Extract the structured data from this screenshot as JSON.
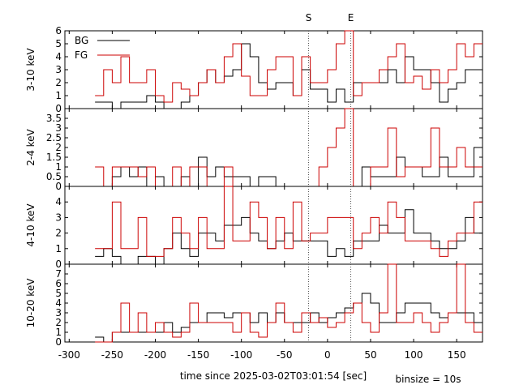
{
  "chart_data": {
    "type": "step-line",
    "xlabel": "time since 2025-03-02T03:01:54 [sec]",
    "note": "binsize = 10s",
    "xlim": [
      -305,
      180
    ],
    "xticks": [
      -300,
      -250,
      -200,
      -150,
      -100,
      -50,
      0,
      50,
      100,
      150
    ],
    "markers": [
      {
        "label": "S",
        "x": -22
      },
      {
        "label": "E",
        "x": 27
      }
    ],
    "legend": {
      "placement": "top-left",
      "entries": [
        {
          "name": "BG",
          "color": "#000000"
        },
        {
          "name": "FG",
          "color": "#cc0000"
        }
      ]
    },
    "panels": [
      {
        "ylabel": "3-10 keV",
        "ylim": [
          0,
          6
        ],
        "yticks": [
          0,
          1,
          2,
          3,
          4,
          5,
          6
        ],
        "x_edges": [
          -270,
          -260,
          -250,
          -240,
          -230,
          -220,
          -210,
          -200,
          -190,
          -180,
          -170,
          -160,
          -150,
          -140,
          -130,
          -120,
          -110,
          -100,
          -90,
          -80,
          -70,
          -60,
          -50,
          -40,
          -30,
          -20,
          -10,
          0,
          10,
          20,
          30,
          40,
          50,
          60,
          70,
          80,
          90,
          100,
          110,
          120,
          130,
          140,
          150,
          160,
          170,
          180
        ],
        "series": [
          {
            "name": "BG",
            "color": "#000000",
            "values": [
              0.5,
              0.5,
              0,
              0.5,
              0.5,
              0.5,
              1,
              0.5,
              0,
              0,
              0.5,
              1,
              2,
              3,
              2,
              2.5,
              3,
              5,
              4,
              2,
              1.5,
              2,
              2,
              1,
              3,
              1.5,
              1.5,
              0.5,
              1.5,
              0.5,
              2,
              2,
              2,
              2,
              3,
              2,
              4,
              3,
              3,
              2,
              0.5,
              1.5,
              2,
              3,
              3
            ]
          },
          {
            "name": "FG",
            "color": "#cc0000",
            "values": [
              1,
              3,
              2,
              4,
              2,
              2,
              3,
              1,
              0.5,
              2,
              1.5,
              1,
              2,
              3,
              2,
              4,
              5,
              2.5,
              1,
              1,
              3,
              4,
              4,
              1,
              4,
              2,
              2,
              3,
              5,
              6,
              1,
              2,
              2,
              3,
              4,
              5,
              2,
              2.5,
              1.5,
              3,
              2,
              3,
              5,
              4,
              5
            ]
          }
        ]
      },
      {
        "ylabel": "2-4 keV",
        "ylim": [
          0,
          4
        ],
        "yticks": [
          0,
          0.5,
          1,
          1.5,
          2,
          2.5,
          3,
          3.5
        ],
        "x_edges": [
          -270,
          -260,
          -250,
          -240,
          -230,
          -220,
          -210,
          -200,
          -190,
          -180,
          -170,
          -160,
          -150,
          -140,
          -130,
          -120,
          -110,
          -100,
          -90,
          -80,
          -70,
          -60,
          -50,
          -40,
          -30,
          -20,
          -10,
          0,
          10,
          20,
          30,
          40,
          50,
          60,
          70,
          80,
          90,
          100,
          110,
          120,
          130,
          140,
          150,
          160,
          170,
          180
        ],
        "series": [
          {
            "name": "BG",
            "color": "#000000",
            "values": [
              0,
              0,
              0.5,
              1,
              0.5,
              1,
              0,
              0.5,
              0,
              0,
              0.5,
              0,
              1.5,
              0.5,
              1,
              0.5,
              0.5,
              0.5,
              0,
              0.5,
              0.5,
              0,
              0,
              0,
              0,
              0,
              0,
              0,
              0,
              0,
              0,
              1,
              0.5,
              0.5,
              0.5,
              1.5,
              1,
              1,
              0.5,
              0.5,
              1.5,
              0.5,
              0.5,
              0.5,
              2
            ]
          },
          {
            "name": "FG",
            "color": "#cc0000",
            "values": [
              1,
              0,
              1,
              1,
              1,
              0.5,
              1,
              0,
              0,
              1,
              0,
              1,
              1,
              0,
              0,
              1,
              0,
              0,
              0,
              0,
              0,
              0,
              0,
              0,
              0,
              0,
              1,
              2,
              3,
              4,
              0,
              0,
              1,
              1,
              3,
              0.5,
              1,
              1,
              1,
              3,
              1,
              1,
              2,
              1,
              1
            ]
          }
        ]
      },
      {
        "ylabel": "4-10 keV",
        "ylim": [
          0,
          5
        ],
        "yticks": [
          0,
          1,
          2,
          3,
          4
        ],
        "x_edges": [
          -270,
          -260,
          -250,
          -240,
          -230,
          -220,
          -210,
          -200,
          -190,
          -180,
          -170,
          -160,
          -150,
          -140,
          -130,
          -120,
          -110,
          -100,
          -90,
          -80,
          -70,
          -60,
          -50,
          -40,
          -30,
          -20,
          -10,
          0,
          10,
          20,
          30,
          40,
          50,
          60,
          70,
          80,
          90,
          100,
          110,
          120,
          130,
          140,
          150,
          160,
          170,
          180
        ],
        "series": [
          {
            "name": "BG",
            "color": "#000000",
            "values": [
              0.5,
              1,
              0.5,
              0,
              0,
              0.5,
              0.5,
              0,
              1,
              2,
              1,
              0.5,
              2,
              2,
              1.5,
              2.5,
              2.5,
              3,
              2,
              1.5,
              1,
              1.5,
              2,
              1.5,
              1.5,
              1.5,
              1.5,
              0.5,
              1,
              0.5,
              1.5,
              1.5,
              1.5,
              2.5,
              2,
              2,
              3.5,
              2,
              2,
              1.5,
              1,
              1,
              1.5,
              3,
              2
            ]
          },
          {
            "name": "FG",
            "color": "#cc0000",
            "values": [
              1,
              1,
              4,
              1,
              1,
              3,
              0.5,
              0.5,
              1,
              3,
              2,
              1,
              3,
              1,
              1,
              5,
              1.5,
              1.5,
              4,
              3,
              1,
              3,
              1,
              4,
              1.5,
              2,
              2,
              3,
              3,
              3,
              1,
              2,
              3,
              2,
              4,
              3,
              1.5,
              1.5,
              1.5,
              1,
              0.5,
              1.5,
              2,
              2,
              4
            ]
          }
        ]
      },
      {
        "ylabel": "10-20 keV",
        "ylim": [
          0,
          8
        ],
        "yticks": [
          0,
          1,
          2,
          3,
          4,
          5,
          6,
          7
        ],
        "x_edges": [
          -270,
          -260,
          -250,
          -240,
          -230,
          -220,
          -210,
          -200,
          -190,
          -180,
          -170,
          -160,
          -150,
          -140,
          -130,
          -120,
          -110,
          -100,
          -90,
          -80,
          -70,
          -60,
          -50,
          -40,
          -30,
          -20,
          -10,
          0,
          10,
          20,
          30,
          40,
          50,
          60,
          70,
          80,
          90,
          100,
          110,
          120,
          130,
          140,
          150,
          160,
          170,
          180
        ],
        "series": [
          {
            "name": "BG",
            "color": "#000000",
            "values": [
              0.5,
              0,
              1,
              1,
              1,
              1,
              1,
              1,
              2,
              1,
              1.5,
              2,
              2,
              3,
              3,
              2.5,
              3,
              3,
              2,
              3,
              2,
              3,
              2,
              2,
              2,
              3,
              2,
              2.5,
              3,
              3.5,
              4,
              5,
              4,
              2,
              2,
              3,
              4,
              4,
              4,
              3,
              2.5,
              3,
              3,
              3,
              2
            ]
          },
          {
            "name": "FG",
            "color": "#cc0000",
            "values": [
              0,
              0,
              1,
              4,
              1,
              3,
              1,
              2,
              1,
              0.5,
              1,
              4,
              2,
              2,
              2,
              2,
              1,
              3,
              1,
              0.5,
              2,
              4,
              2,
              1,
              3,
              2,
              2.5,
              1.5,
              2,
              3,
              4,
              2,
              1,
              3,
              8,
              2,
              2,
              3,
              2,
              1,
              2,
              3,
              8,
              2,
              1
            ]
          }
        ]
      }
    ]
  }
}
